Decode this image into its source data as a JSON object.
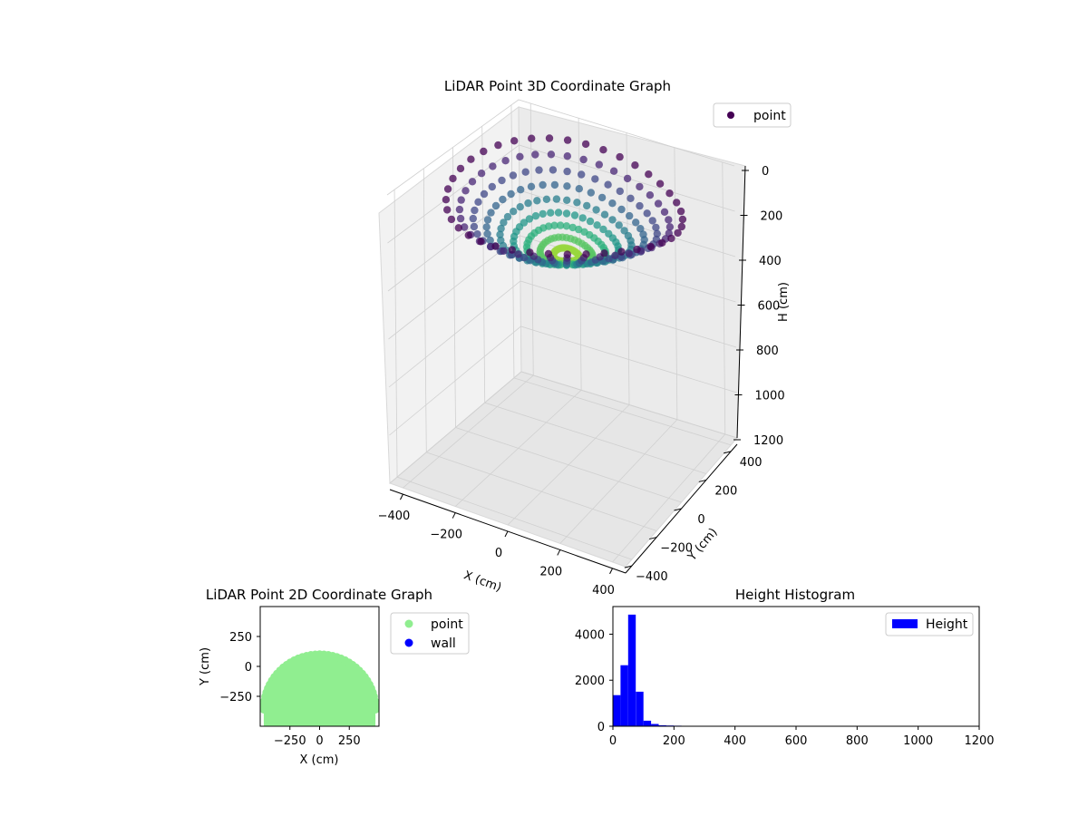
{
  "chart_data": [
    {
      "type": "scatter3d",
      "title": "LiDAR Point 3D Coordinate Graph",
      "xlabel": "X (cm)",
      "ylabel": "Y (cm)",
      "zlabel": "H (cm)",
      "xticks": [
        -400,
        -200,
        0,
        200,
        400
      ],
      "yticks": [
        -400,
        -200,
        0,
        200,
        400
      ],
      "zticks": [
        0,
        200,
        400,
        600,
        800,
        1000,
        1200
      ],
      "xlim": [
        -450,
        450
      ],
      "ylim": [
        -450,
        450
      ],
      "zlim": [
        1200,
        0
      ],
      "colormap": "viridis",
      "colors": {
        "low": "#440154",
        "mid": "#21918c",
        "high": "#fde725"
      },
      "legend": {
        "position": "top-right",
        "entries": [
          {
            "label": "point",
            "color": "#440154",
            "marker": "circle"
          }
        ]
      },
      "point_cloud": {
        "description": "dome-shaped point cloud, radius ~420 cm, heights ~0-250 cm",
        "rings": 9,
        "spokes": 40
      }
    },
    {
      "type": "scatter",
      "title": "LiDAR Point 2D Coordinate Graph",
      "xlabel": "X (cm)",
      "ylabel": "Y (cm)",
      "xticks": [
        -250,
        0,
        250
      ],
      "yticks": [
        250,
        0,
        -250
      ],
      "xlim": [
        -500,
        500
      ],
      "ylim": [
        -500,
        500
      ],
      "series": [
        {
          "name": "point",
          "color": "#90ee90"
        },
        {
          "name": "wall",
          "color": "#0000ff"
        }
      ],
      "legend": {
        "position": "outside-right"
      }
    },
    {
      "type": "bar",
      "title": "Height Histogram",
      "xlim": [
        0,
        1200
      ],
      "ylim": [
        0,
        5200
      ],
      "xticks": [
        0,
        200,
        400,
        600,
        800,
        1000,
        1200
      ],
      "yticks": [
        0,
        2000,
        4000
      ],
      "bin_width": 25,
      "bins": [
        {
          "x0": 0,
          "x1": 25,
          "value": 1350
        },
        {
          "x0": 25,
          "x1": 50,
          "value": 2650
        },
        {
          "x0": 50,
          "x1": 75,
          "value": 4850
        },
        {
          "x0": 75,
          "x1": 100,
          "value": 1500
        },
        {
          "x0": 100,
          "x1": 125,
          "value": 240
        },
        {
          "x0": 125,
          "x1": 150,
          "value": 100
        },
        {
          "x0": 150,
          "x1": 175,
          "value": 45
        },
        {
          "x0": 175,
          "x1": 200,
          "value": 30
        },
        {
          "x0": 200,
          "x1": 225,
          "value": 25
        },
        {
          "x0": 225,
          "x1": 250,
          "value": 20
        },
        {
          "x0": 250,
          "x1": 275,
          "value": 8
        },
        {
          "x0": 275,
          "x1": 300,
          "value": 4
        }
      ],
      "series": [
        {
          "name": "Height",
          "color": "#0000ff"
        }
      ],
      "legend": {
        "position": "top-right"
      }
    }
  ]
}
